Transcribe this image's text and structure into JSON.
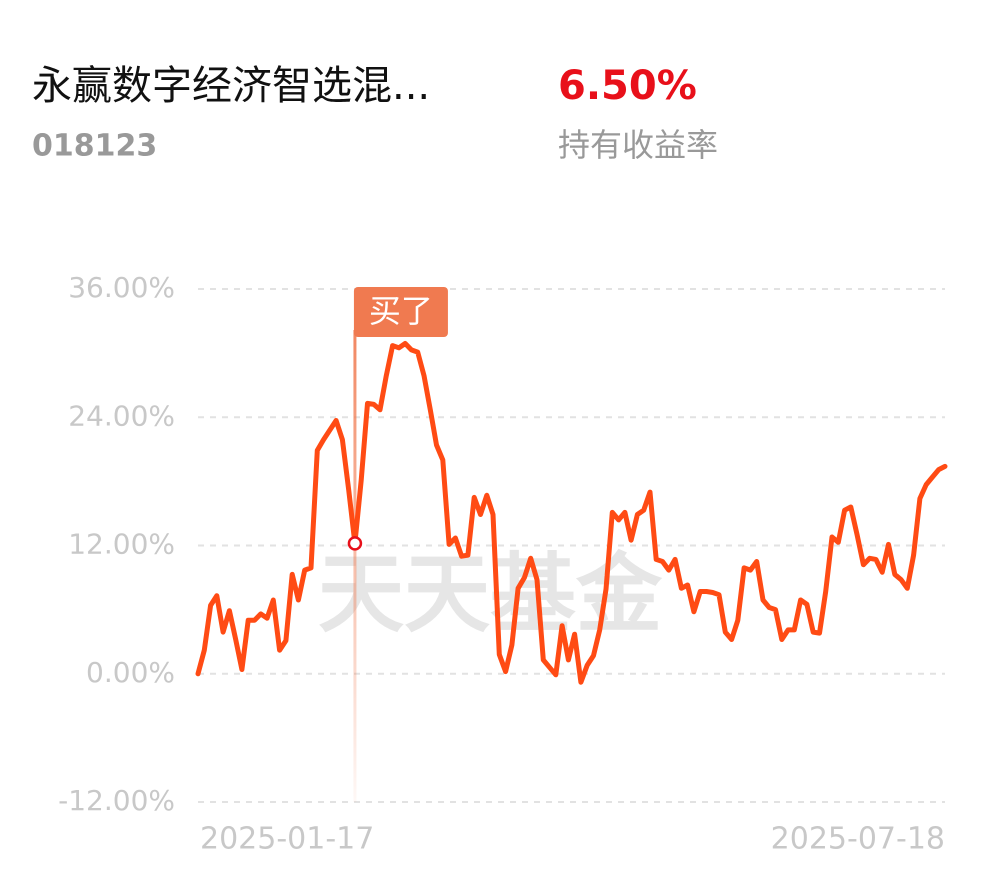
{
  "header": {
    "title": "永赢数字经济智选混...",
    "code": "018123",
    "return": "6.50%",
    "return_label": "持有收益率"
  },
  "chart_data": {
    "type": "line",
    "watermark": "天天基金",
    "color": "#ff4b14",
    "categories": [
      "2025-01-17",
      null,
      null,
      null,
      null,
      null,
      null,
      null,
      null,
      null,
      null,
      null,
      null,
      null,
      null,
      null,
      null,
      null,
      null,
      null,
      null,
      null,
      null,
      null,
      null,
      null,
      null,
      null,
      null,
      null,
      null,
      null,
      null,
      null,
      null,
      null,
      null,
      null,
      null,
      null,
      null,
      null,
      null,
      null,
      null,
      null,
      null,
      null,
      null,
      null,
      null,
      null,
      null,
      null,
      null,
      null,
      null,
      null,
      null,
      null,
      null,
      null,
      null,
      null,
      null,
      null,
      null,
      null,
      null,
      null,
      null,
      null,
      null,
      null,
      null,
      null,
      null,
      null,
      null,
      null,
      null,
      null,
      null,
      null,
      null,
      null,
      null,
      null,
      null,
      null,
      null,
      null,
      null,
      null,
      null,
      null,
      null,
      null,
      null,
      null,
      null,
      null,
      null,
      null,
      null,
      null,
      null,
      null,
      null,
      null,
      null,
      null,
      null,
      null,
      null,
      null,
      null,
      null,
      null,
      "2025-07-18"
    ],
    "values": [
      0,
      2.2,
      6.4,
      7.3,
      3.9,
      5.9,
      3.2,
      0.4,
      5.0,
      5.0,
      5.6,
      5.2,
      6.9,
      2.2,
      3.1,
      9.3,
      6.9,
      9.7,
      9.9,
      20.9,
      21.9,
      22.8,
      23.7,
      21.9,
      17.2,
      12.2,
      18.1,
      25.3,
      25.2,
      24.7,
      27.9,
      30.7,
      30.5,
      30.9,
      30.3,
      30.1,
      27.9,
      24.7,
      21.4,
      20.0,
      12.1,
      12.7,
      11.0,
      11.1,
      16.5,
      14.9,
      16.7,
      14.9,
      1.8,
      0.2,
      2.7,
      8.0,
      9.0,
      10.8,
      8.8,
      1.3,
      0.6,
      -0.1,
      4.5,
      1.3,
      3.7,
      -0.8,
      0.8,
      1.7,
      4.1,
      7.9,
      15.1,
      14.4,
      15.1,
      12.5,
      14.9,
      15.3,
      17.0,
      10.7,
      10.5,
      9.7,
      10.7,
      8.0,
      8.3,
      5.8,
      7.7,
      7.7,
      7.6,
      7.4,
      3.9,
      3.2,
      5.0,
      9.9,
      9.7,
      10.5,
      6.9,
      6.2,
      6.0,
      3.2,
      4.1,
      4.1,
      6.9,
      6.5,
      3.9,
      3.8,
      7.7,
      12.8,
      12.3,
      15.3,
      15.6,
      13.0,
      10.2,
      10.8,
      10.7,
      9.5,
      12.1,
      9.3,
      8.8,
      8.0,
      11.1,
      16.4,
      17.7,
      18.4,
      19.1,
      19.4
    ],
    "ylim": [
      -12,
      36
    ],
    "yticks": [
      {
        "value": -12,
        "label": "-12.00%"
      },
      {
        "value": 0,
        "label": "0.00%"
      },
      {
        "value": 12,
        "label": "12.00%"
      },
      {
        "value": 24,
        "label": "24.00%"
      },
      {
        "value": 36,
        "label": "36.00%"
      }
    ],
    "grid": true,
    "annotation": {
      "text": "买了",
      "index": 25
    }
  }
}
